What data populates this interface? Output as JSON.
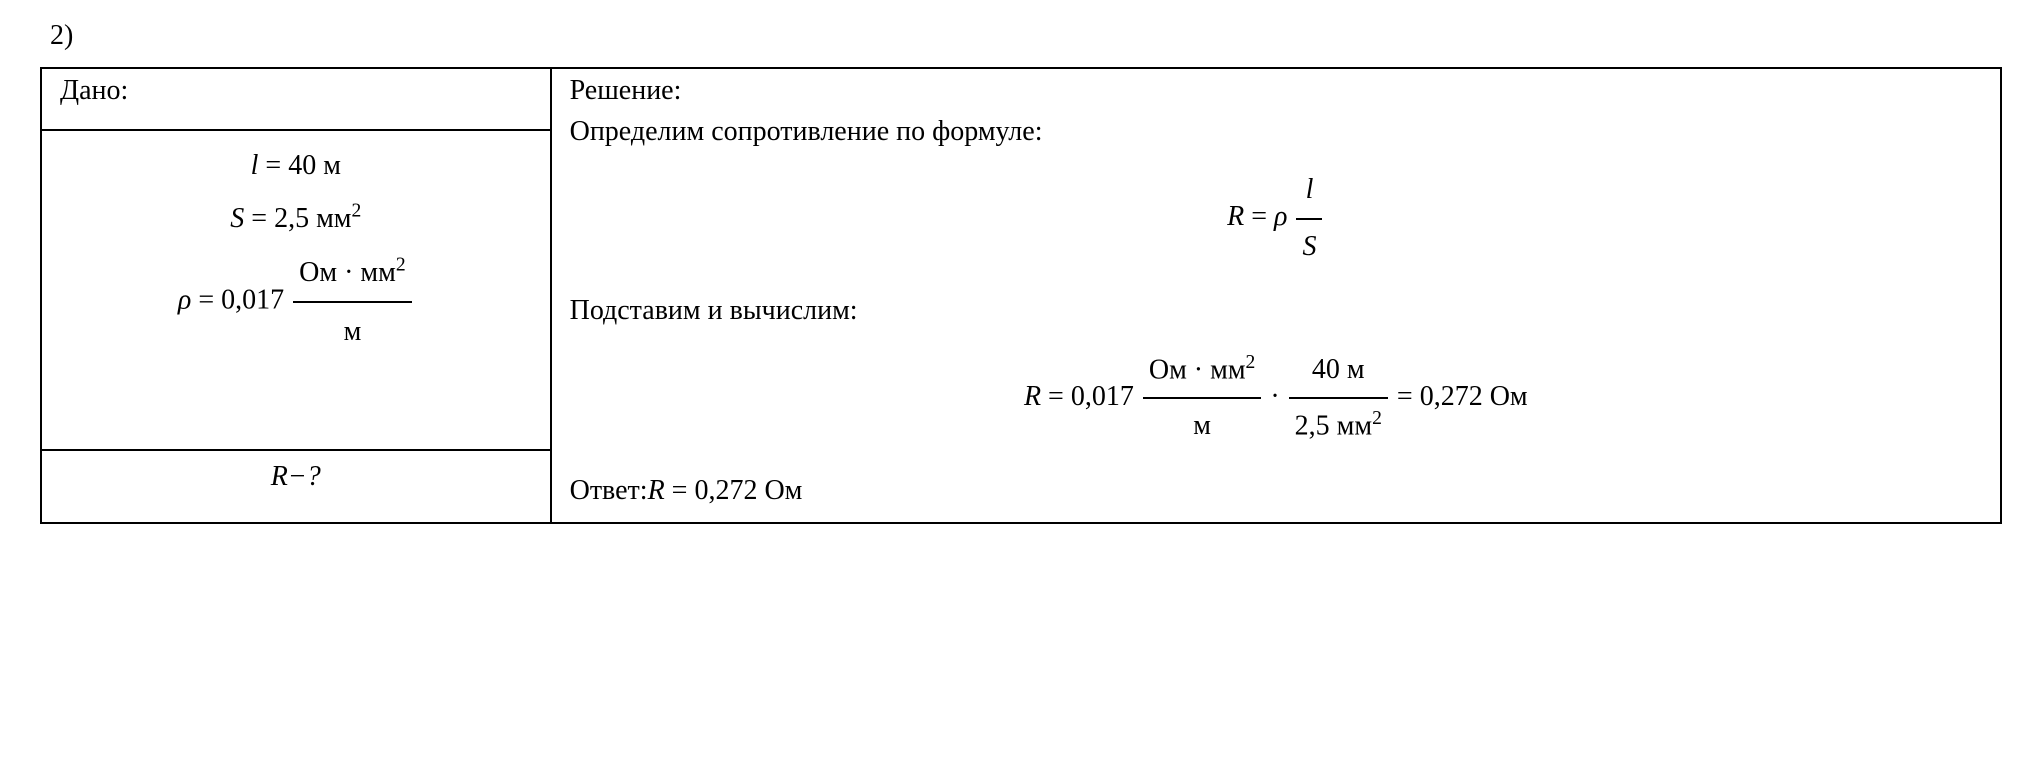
{
  "number": "2)",
  "left": {
    "header": "Дано:",
    "line1_lhs": "l",
    "line1_rhs": "= 40 м",
    "line2_lhs": "S",
    "line2_rhs": "= 2,5 мм",
    "line2_sup": "2",
    "rho_sym": "ρ",
    "rho_eq": "= 0,017",
    "rho_num_a": "Ом · мм",
    "rho_num_sup": "2",
    "rho_den": "м",
    "question": "R−?"
  },
  "right": {
    "header": "Решение:",
    "text1": "Определим сопротивление по формуле:",
    "formula_lhs": "R",
    "formula_eq": "=",
    "formula_rho": "ρ",
    "formula_num": "l",
    "formula_den": "S",
    "text2": "Подставим и вычислим:",
    "calc_lhs": "R",
    "calc_eq1": "= 0,017",
    "calc_f1_num": "Ом · мм",
    "calc_f1_sup": "2",
    "calc_f1_den": "м",
    "calc_dot": "·",
    "calc_f2_num": "40 м",
    "calc_f2_den_a": "2,5 мм",
    "calc_f2_den_sup": "2",
    "calc_result": "= 0,272 Ом",
    "answer_label": "Ответ:",
    "answer_val": "R",
    "answer_rest": "= 0,272 Ом"
  },
  "style": {
    "font_family": "Times New Roman",
    "font_size_pt": 28,
    "text_color": "#000000",
    "background_color": "#ffffff",
    "border_color": "#000000"
  }
}
